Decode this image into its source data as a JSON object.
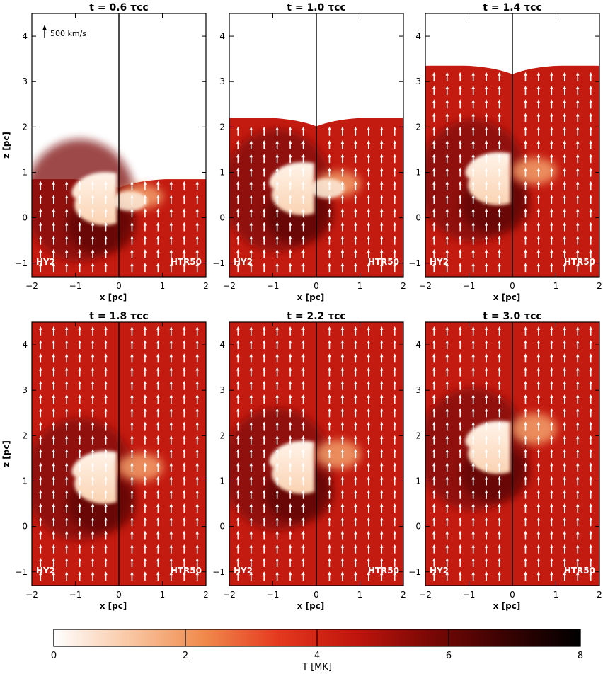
{
  "chart_data": {
    "type": "heatmap",
    "layout": {
      "rows": 2,
      "cols": 3
    },
    "xlim": [
      -2,
      2
    ],
    "ylim": [
      -1.3,
      4.5
    ],
    "xticks": [
      -2,
      -1,
      0,
      1,
      2
    ],
    "yticks": [
      -1,
      0,
      1,
      2,
      3,
      4
    ],
    "xlabel": "x [pc]",
    "ylabel": "z [pc]",
    "left_label": "HY2",
    "right_label": "HTR50",
    "velocity_key": "500 km/s",
    "panels": [
      {
        "title": "t = 0.6 τcc",
        "t": 0.6,
        "front_z": 0.85
      },
      {
        "title": "t = 1.0 τcc",
        "t": 1.0,
        "front_z": 2.2
      },
      {
        "title": "t = 1.4 τcc",
        "t": 1.4,
        "front_z": 3.35
      },
      {
        "title": "t = 1.8 τcc",
        "t": 1.8,
        "front_z": 4.5
      },
      {
        "title": "t = 2.2 τcc",
        "t": 2.2,
        "front_z": 4.5
      },
      {
        "title": "t = 3.0 τcc",
        "t": 3.0,
        "front_z": 4.5
      }
    ],
    "colorbar": {
      "label": "T [MK]",
      "range": [
        0,
        8
      ],
      "ticks": [
        0,
        2,
        4,
        6,
        8
      ],
      "colors": [
        "#ffffff",
        "#f9c7a4",
        "#f08a4b",
        "#e4381e",
        "#c0150c",
        "#7a0805",
        "#3a0202",
        "#000000"
      ]
    }
  }
}
